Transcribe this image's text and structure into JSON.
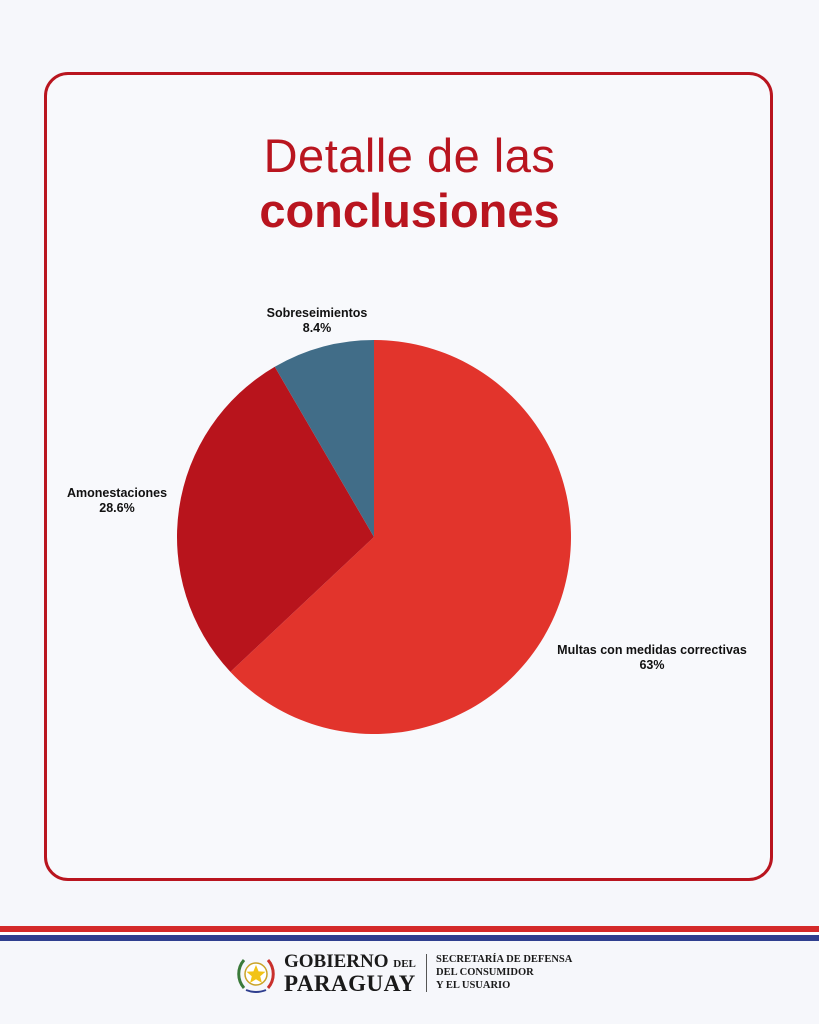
{
  "title": {
    "line1": "Detalle de las",
    "line2": "conclusiones"
  },
  "chart_data": {
    "type": "pie",
    "slices": [
      {
        "label": "Multas con medidas correctivas",
        "value": 63,
        "display": "63%",
        "color": "#e2342c"
      },
      {
        "label": "Amonestaciones",
        "value": 28.6,
        "display": "28.6%",
        "color": "#b8141c"
      },
      {
        "label": "Sobreseimientos",
        "value": 8.4,
        "display": "8.4%",
        "color": "#416d88"
      }
    ]
  },
  "footer": {
    "gov_line1": "GOBIERNO",
    "gov_del": "DEL",
    "gov_line2": "PARAGUAY",
    "secretaria": [
      "SECRETARÍA DE DEFENSA",
      "DEL CONSUMIDOR",
      "Y EL USUARIO"
    ],
    "colors": {
      "red": "#d42a2a",
      "blue": "#2f3f8f"
    }
  }
}
